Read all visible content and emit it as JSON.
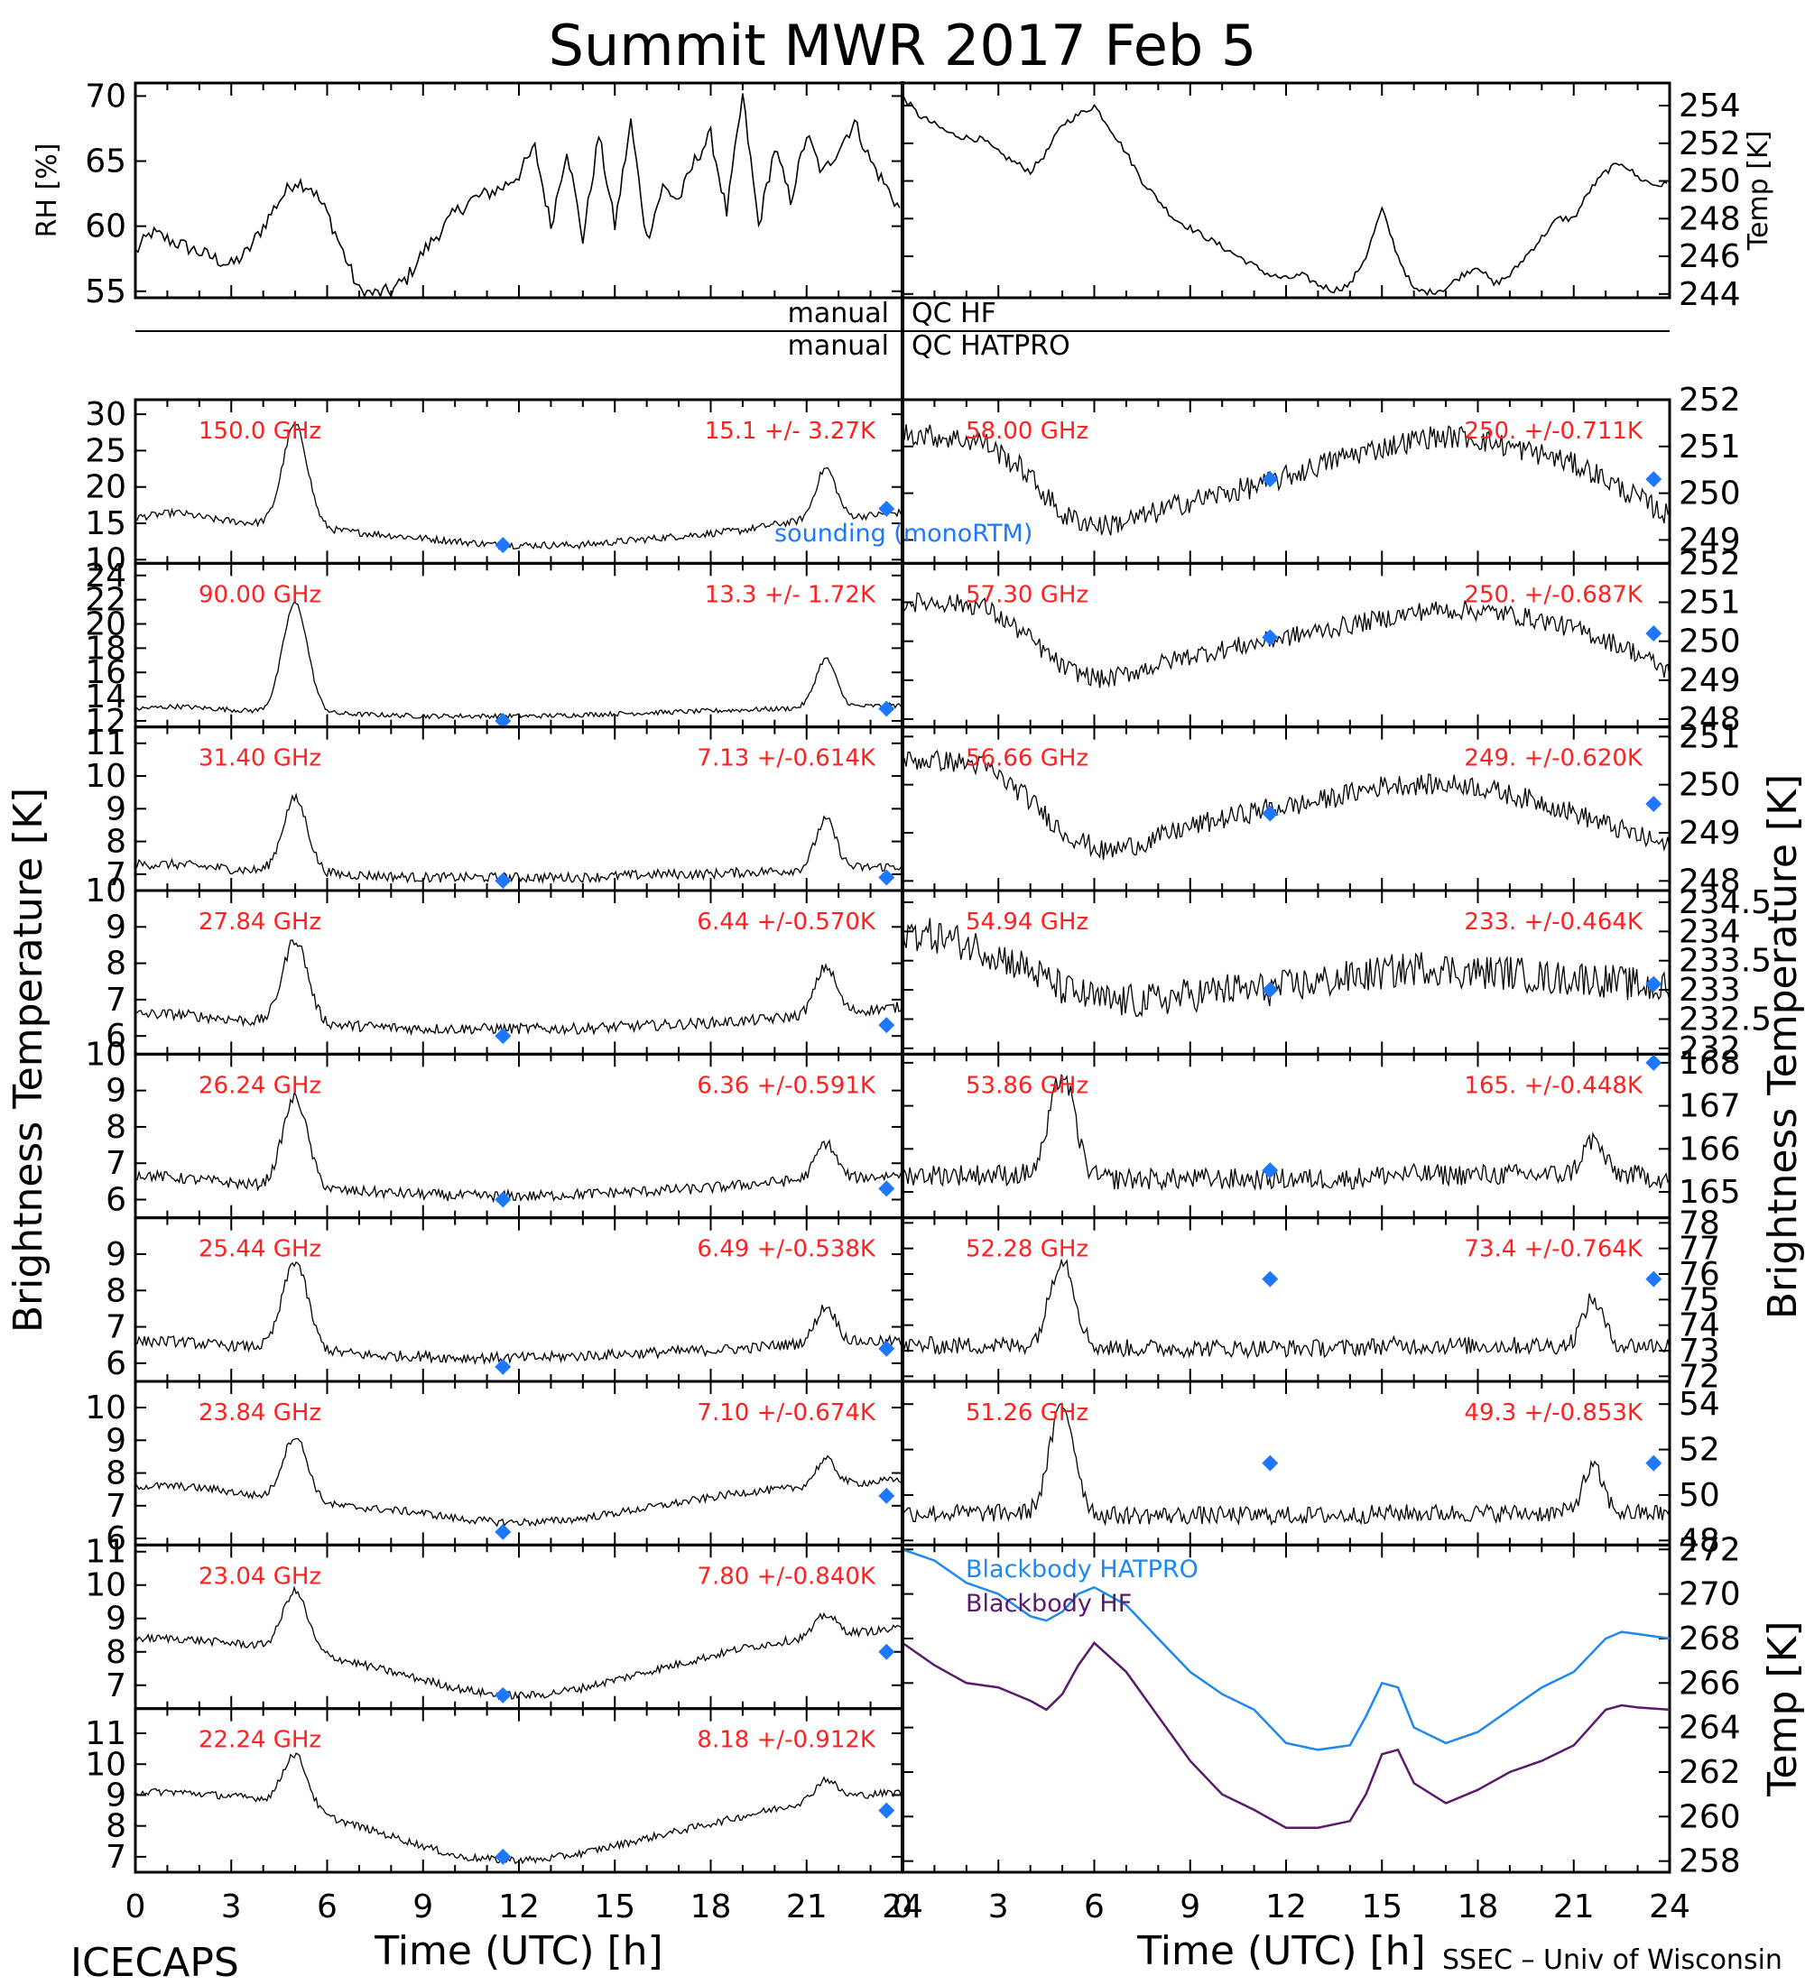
{
  "title": "Summit MWR 2017 Feb  5",
  "footer_left": "ICECAPS",
  "footer_right": "SSEC – Univ of Wisconsin",
  "x_axis_title": "Time (UTC) [h]",
  "x_ticks": [
    "0",
    "3",
    "6",
    "9",
    "12",
    "15",
    "18",
    "21",
    "24"
  ],
  "left_axis_title": "Brightness Temperature [K]",
  "right_axis_title": "Brightness Temperature [K]",
  "qc_labels": {
    "manual_hf": "manual",
    "qc_hf": "QC HF",
    "manual_hatpro": "manual",
    "qc_hatpro": "QC HATPRO"
  },
  "legend": {
    "sounding": "sounding (monoRTM)",
    "bb_hatpro": "Blackbody HATPRO",
    "bb_hf": "Blackbody HF"
  },
  "colors": {
    "text_red": "#ff2020",
    "sounding": "#1e78ff",
    "bb_hatpro": "#1e88ee",
    "bb_hf": "#5a1a6e",
    "data": "#000000"
  },
  "chart_data": [
    {
      "id": "rh",
      "type": "line",
      "ylabel": "RH [%]",
      "ylim": [
        54.5,
        71
      ],
      "yticks": [
        55,
        60,
        65,
        70
      ],
      "xlim": [
        0,
        24
      ],
      "x": [
        0,
        0.5,
        1,
        1.5,
        2,
        2.5,
        3,
        3.5,
        4,
        4.5,
        5,
        5.5,
        6,
        6.5,
        7,
        7.5,
        8,
        8.5,
        9,
        9.5,
        10,
        10.5,
        11,
        11.5,
        12,
        12.5,
        13,
        13.5,
        14,
        14.5,
        15,
        15.5,
        16,
        16.5,
        17,
        17.5,
        18,
        18.5,
        19,
        19.5,
        20,
        20.5,
        21,
        21.5,
        22,
        22.5,
        23,
        23.5,
        24
      ],
      "values": [
        58,
        59.5,
        59,
        58.5,
        58,
        57.5,
        57,
        58,
        60,
        62,
        63.5,
        63,
        61,
        58,
        55,
        54.8,
        55,
        56,
        58,
        59.5,
        61,
        62,
        62.5,
        63,
        64,
        66,
        60,
        66,
        59,
        67,
        60,
        68,
        59,
        63,
        62,
        65,
        67,
        61,
        70,
        60,
        66,
        62,
        67,
        64,
        66,
        68,
        65,
        63,
        61
      ]
    },
    {
      "id": "temp",
      "type": "line",
      "ylabel": "Temp [K]",
      "ylim": [
        243.8,
        255.2
      ],
      "yticks": [
        244,
        246,
        248,
        250,
        252,
        254
      ],
      "xlim": [
        0,
        24
      ],
      "x": [
        0,
        0.5,
        1,
        1.5,
        2,
        2.5,
        3,
        3.5,
        4,
        4.5,
        5,
        5.5,
        6,
        6.5,
        7,
        7.5,
        8,
        8.5,
        9,
        9.5,
        10,
        10.5,
        11,
        11.5,
        12,
        12.5,
        13,
        13.5,
        14,
        14.5,
        15,
        15.5,
        16,
        16.5,
        17,
        17.5,
        18,
        18.5,
        19,
        19.5,
        20,
        20.5,
        21,
        21.5,
        22,
        22.5,
        23,
        23.5,
        24
      ],
      "values": [
        254.5,
        253.5,
        253,
        252.5,
        252.3,
        252.2,
        251.5,
        251,
        250.5,
        251.5,
        253,
        253.5,
        254,
        252.8,
        251.5,
        250,
        249,
        248,
        247.5,
        247,
        246.5,
        246,
        245.5,
        245,
        244.8,
        245,
        244.5,
        244.2,
        244.5,
        246,
        248.5,
        246,
        244.2,
        244.1,
        244.3,
        245,
        245.5,
        244.5,
        245,
        246,
        247,
        248,
        248,
        249.5,
        250.5,
        251,
        250.2,
        249.8,
        249.8
      ]
    },
    {
      "id": "b150",
      "side": "left",
      "type": "line",
      "freq": "150.0 GHz",
      "stat": "15.1 +/-  3.27K",
      "ylim": [
        9.5,
        32
      ],
      "yticks": [
        10,
        15,
        20,
        25,
        30
      ],
      "base": [
        15.8,
        16.5,
        15.5,
        15,
        14.5,
        14,
        13.5,
        13,
        12.5,
        12,
        12,
        12,
        12.5,
        13,
        13.5,
        14,
        15,
        15.5,
        16,
        16.5
      ],
      "peak1": 14,
      "peak2": 7,
      "noise": 0.5,
      "sound": [
        12,
        17
      ]
    },
    {
      "id": "b90",
      "side": "left",
      "type": "line",
      "freq": "90.00 GHz",
      "stat": "13.3 +/-  1.72K",
      "ylim": [
        11.5,
        25
      ],
      "yticks": [
        12,
        14,
        16,
        18,
        20,
        22,
        24
      ],
      "base": [
        13,
        13.2,
        13,
        12.8,
        12.7,
        12.6,
        12.5,
        12.4,
        12.4,
        12.4,
        12.4,
        12.5,
        12.6,
        12.7,
        12.8,
        12.9,
        13,
        13.1,
        13.2,
        13.3
      ],
      "peak1": 9,
      "peak2": 4,
      "noise": 0.2,
      "sound": [
        12,
        13
      ]
    },
    {
      "id": "b3140",
      "side": "left",
      "type": "line",
      "freq": "31.40 GHz",
      "stat": "7.13 +/-0.614K",
      "ylim": [
        6.5,
        11.5
      ],
      "yticks": [
        7,
        8,
        9,
        10,
        11
      ],
      "base": [
        7.3,
        7.3,
        7.2,
        7.1,
        7,
        7,
        6.95,
        6.9,
        6.9,
        6.9,
        6.9,
        6.9,
        6.95,
        7,
        7,
        7.05,
        7.1,
        7.15,
        7.2,
        7.25
      ],
      "peak1": 2.3,
      "peak2": 1.5,
      "noise": 0.15,
      "sound": [
        6.8,
        6.9
      ]
    },
    {
      "id": "b2784",
      "side": "left",
      "type": "line",
      "freq": "27.84 GHz",
      "stat": "6.44 +/-0.570K",
      "ylim": [
        5.5,
        10
      ],
      "yticks": [
        6,
        7,
        8,
        9,
        10
      ],
      "base": [
        6.6,
        6.6,
        6.5,
        6.4,
        6.35,
        6.3,
        6.25,
        6.2,
        6.2,
        6.2,
        6.2,
        6.2,
        6.25,
        6.3,
        6.35,
        6.4,
        6.5,
        6.6,
        6.7,
        6.8
      ],
      "peak1": 2.3,
      "peak2": 1.3,
      "noise": 0.15,
      "sound": [
        6,
        6.3
      ]
    },
    {
      "id": "b2624",
      "side": "left",
      "type": "line",
      "freq": "26.24 GHz",
      "stat": "6.36 +/-0.591K",
      "ylim": [
        5.5,
        10
      ],
      "yticks": [
        6,
        7,
        8,
        9,
        10
      ],
      "base": [
        6.7,
        6.6,
        6.5,
        6.4,
        6.3,
        6.25,
        6.2,
        6.15,
        6.1,
        6.1,
        6.1,
        6.15,
        6.2,
        6.25,
        6.3,
        6.4,
        6.5,
        6.55,
        6.6,
        6.7
      ],
      "peak1": 2.5,
      "peak2": 1,
      "noise": 0.15,
      "sound": [
        6,
        6.3
      ]
    },
    {
      "id": "b2544",
      "side": "left",
      "type": "line",
      "freq": "25.44 GHz",
      "stat": "6.49 +/-0.538K",
      "ylim": [
        5.5,
        10
      ],
      "yticks": [
        6,
        7,
        8,
        9
      ],
      "base": [
        6.6,
        6.6,
        6.5,
        6.45,
        6.4,
        6.3,
        6.2,
        6.2,
        6.15,
        6.15,
        6.15,
        6.2,
        6.25,
        6.3,
        6.35,
        6.4,
        6.5,
        6.55,
        6.6,
        6.6
      ],
      "peak1": 2.4,
      "peak2": 1,
      "noise": 0.15,
      "sound": [
        5.9,
        6.4
      ]
    },
    {
      "id": "b2384",
      "side": "left",
      "type": "line",
      "freq": "23.84 GHz",
      "stat": "7.10 +/-0.674K",
      "ylim": [
        5.8,
        10.8
      ],
      "yticks": [
        6,
        7,
        8,
        9,
        10
      ],
      "base": [
        7.6,
        7.6,
        7.5,
        7.3,
        7.1,
        7,
        6.9,
        6.8,
        6.6,
        6.5,
        6.5,
        6.6,
        6.8,
        7,
        7.2,
        7.4,
        7.5,
        7.6,
        7.7,
        7.8
      ],
      "peak1": 2,
      "peak2": 0.8,
      "noise": 0.12,
      "sound": [
        6.2,
        7.3
      ]
    },
    {
      "id": "b2304",
      "side": "left",
      "type": "line",
      "freq": "23.04 GHz",
      "stat": "7.80 +/-0.840K",
      "ylim": [
        6.3,
        11.2
      ],
      "yticks": [
        7,
        8,
        9,
        10,
        11
      ],
      "base": [
        8.4,
        8.4,
        8.3,
        8.2,
        8,
        7.8,
        7.5,
        7.2,
        6.9,
        6.7,
        6.7,
        6.9,
        7.2,
        7.5,
        7.8,
        8.1,
        8.3,
        8.5,
        8.6,
        8.7
      ],
      "peak1": 1.8,
      "peak2": 0.6,
      "noise": 0.12,
      "sound": [
        6.7,
        8
      ]
    },
    {
      "id": "b2224",
      "side": "left",
      "type": "line",
      "freq": "22.24 GHz",
      "stat": "8.18 +/-0.912K",
      "ylim": [
        6.5,
        11.8
      ],
      "yticks": [
        7,
        8,
        9,
        10,
        11
      ],
      "base": [
        9.1,
        9.1,
        9,
        8.9,
        8.5,
        8.2,
        7.8,
        7.4,
        7,
        6.9,
        6.9,
        7.1,
        7.4,
        7.7,
        8,
        8.3,
        8.6,
        8.9,
        9,
        9.1
      ],
      "peak1": 1.8,
      "peak2": 0.6,
      "noise": 0.12,
      "sound": [
        7,
        8.5
      ]
    },
    {
      "id": "b5800",
      "side": "right",
      "type": "line",
      "freq": "58.00 GHz",
      "stat": "250. +/-0.711K",
      "ylim": [
        248.5,
        252
      ],
      "yticks": [
        249,
        250,
        251,
        252
      ],
      "base": [
        251.3,
        251.2,
        251.1,
        250.5,
        249.5,
        249.3,
        249.5,
        249.8,
        250,
        250.2,
        250.5,
        250.8,
        251,
        251.2,
        251.2,
        251,
        250.8,
        250.5,
        250,
        249.5
      ],
      "peak1": 0,
      "peak2": 0,
      "noise": 0.25,
      "sound": [
        250.3,
        250.3
      ]
    },
    {
      "id": "b5730",
      "side": "right",
      "type": "line",
      "freq": "57.30 GHz",
      "stat": "250. +/-0.687K",
      "ylim": [
        247.8,
        252
      ],
      "yticks": [
        248,
        249,
        250,
        251,
        252
      ],
      "base": [
        251,
        251,
        250.9,
        250.2,
        249.3,
        249,
        249.3,
        249.6,
        249.8,
        250,
        250.2,
        250.4,
        250.6,
        250.8,
        250.8,
        250.7,
        250.5,
        250.2,
        249.8,
        249.2
      ],
      "peak1": 0,
      "peak2": 0,
      "noise": 0.25,
      "sound": [
        250.1,
        250.2
      ]
    },
    {
      "id": "b5666",
      "side": "right",
      "type": "line",
      "freq": "56.66 GHz",
      "stat": "249. +/-0.620K",
      "ylim": [
        247.8,
        251.2
      ],
      "yticks": [
        248,
        249,
        250,
        251
      ],
      "base": [
        250.5,
        250.5,
        250.4,
        249.8,
        249,
        248.6,
        248.8,
        249.1,
        249.3,
        249.5,
        249.6,
        249.8,
        250,
        250,
        250,
        249.8,
        249.6,
        249.3,
        249,
        248.7
      ],
      "peak1": 0,
      "peak2": 0,
      "noise": 0.22,
      "sound": [
        249.4,
        249.6
      ]
    },
    {
      "id": "b5494",
      "side": "right",
      "type": "line",
      "freq": "54.94 GHz",
      "stat": "233. +/-0.464K",
      "ylim": [
        231.9,
        234.7
      ],
      "yticks": [
        232,
        232.5,
        233,
        233.5,
        234,
        234.5
      ],
      "base": [
        234,
        233.9,
        233.7,
        233.4,
        233,
        232.8,
        232.8,
        232.9,
        233,
        233,
        233.1,
        233.2,
        233.3,
        233.4,
        233.3,
        233.3,
        233.2,
        233.2,
        233.1,
        233
      ],
      "peak1": 0,
      "peak2": 0,
      "noise": 0.3,
      "sound": [
        233,
        233.1
      ]
    },
    {
      "id": "b5386",
      "side": "right",
      "type": "line",
      "freq": "53.86 GHz",
      "stat": "165. +/-0.448K",
      "ylim": [
        164.4,
        168.2
      ],
      "yticks": [
        165,
        166,
        167,
        168
      ],
      "base": [
        165.4,
        165.4,
        165.4,
        165.4,
        165.3,
        165.3,
        165.3,
        165.3,
        165.3,
        165.3,
        165.3,
        165.3,
        165.4,
        165.4,
        165.4,
        165.4,
        165.4,
        165.4,
        165.4,
        165.3
      ],
      "peak1": 2.4,
      "peak2": 0.8,
      "noise": 0.25,
      "sound": [
        165.5,
        168
      ]
    },
    {
      "id": "b5228",
      "side": "right",
      "type": "line",
      "freq": "52.28 GHz",
      "stat": "73.4 +/-0.764K",
      "ylim": [
        71.8,
        78.2
      ],
      "yticks": [
        72,
        73,
        74,
        75,
        76,
        77,
        78
      ],
      "base": [
        73.2,
        73.2,
        73.2,
        73.2,
        73.1,
        73.1,
        73.1,
        73.1,
        73.1,
        73.1,
        73.1,
        73.1,
        73.2,
        73.2,
        73.2,
        73.2,
        73.2,
        73.2,
        73.2,
        73.2
      ],
      "peak1": 3.5,
      "peak2": 1.8,
      "noise": 0.35,
      "sound": [
        75.8,
        75.8
      ]
    },
    {
      "id": "b5126",
      "side": "right",
      "type": "line",
      "freq": "51.26 GHz",
      "stat": "49.3 +/-0.853K",
      "ylim": [
        47.8,
        55
      ],
      "yticks": [
        48,
        50,
        52,
        54
      ],
      "base": [
        49.2,
        49.2,
        49.2,
        49.2,
        49.1,
        49.1,
        49.1,
        49.1,
        49.1,
        49.1,
        49.1,
        49.1,
        49.2,
        49.2,
        49.2,
        49.2,
        49.2,
        49.2,
        49.2,
        49.2
      ],
      "peak1": 4.8,
      "peak2": 2,
      "noise": 0.4,
      "sound": [
        51.4,
        51.4
      ]
    },
    {
      "id": "bb",
      "type": "line",
      "ylabel": "Temp [K]",
      "ylim": [
        257.5,
        272.2
      ],
      "yticks": [
        258,
        260,
        262,
        264,
        266,
        268,
        270,
        272
      ],
      "xlim": [
        0,
        24
      ],
      "x": [
        0,
        1,
        2,
        3,
        4,
        4.5,
        5,
        5.5,
        6,
        7,
        8,
        9,
        10,
        11,
        12,
        13,
        14,
        14.5,
        15,
        15.5,
        16,
        17,
        18,
        19,
        20,
        21,
        22,
        22.5,
        23,
        24
      ],
      "series": [
        {
          "name": "Blackbody HATPRO",
          "values": [
            272,
            271.5,
            270.5,
            270,
            269,
            268.8,
            269.2,
            270,
            270.3,
            269.5,
            268,
            266.5,
            265.5,
            264.8,
            263.3,
            263,
            263.2,
            264.5,
            266,
            265.8,
            264,
            263.3,
            263.8,
            264.8,
            265.8,
            266.5,
            268,
            268.3,
            268.2,
            268
          ]
        },
        {
          "name": "Blackbody HF",
          "values": [
            267.8,
            266.8,
            266,
            265.8,
            265.2,
            264.8,
            265.5,
            266.8,
            267.8,
            266.5,
            264.5,
            262.5,
            261,
            260.3,
            259.5,
            259.5,
            259.8,
            261,
            262.8,
            263,
            261.5,
            260.6,
            261.2,
            262,
            262.5,
            263.2,
            264.8,
            265,
            264.9,
            264.8
          ]
        }
      ]
    }
  ]
}
